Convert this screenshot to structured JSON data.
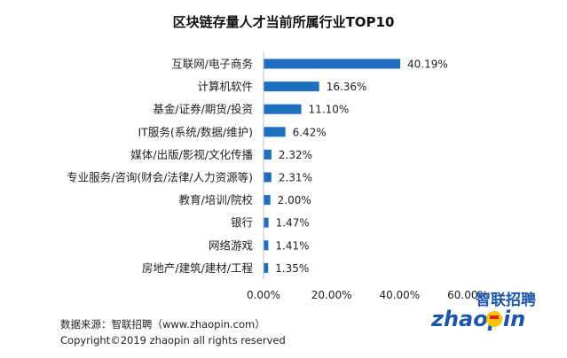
{
  "chart_data": {
    "type": "bar",
    "orientation": "horizontal",
    "title": "区块链存量人才当前所属行业TOP10",
    "categories": [
      "互联网/电子商务",
      "计算机软件",
      "基金/证券/期货/投资",
      "IT服务(系统/数据/维护)",
      "媒体/出版/影视/文化传播",
      "专业服务/咨询(财会/法律/人力资源等)",
      "教育/培训/院校",
      "银行",
      "网络游戏",
      "房地产/建筑/建材/工程"
    ],
    "values": [
      40.19,
      16.36,
      11.1,
      6.42,
      2.32,
      2.31,
      2.0,
      1.47,
      1.41,
      1.35
    ],
    "value_labels": [
      "40.19%",
      "16.36%",
      "11.10%",
      "6.42%",
      "2.32%",
      "2.31%",
      "2.00%",
      "1.47%",
      "1.41%",
      "1.35%"
    ],
    "xlim": [
      0,
      60
    ],
    "x_ticks": [
      0,
      20,
      40,
      60
    ],
    "x_tick_labels": [
      "0.00%",
      "20.00%",
      "40.00%",
      "60.00%"
    ],
    "grid": false,
    "bar_color": "#1f6fc1"
  },
  "footer": {
    "source": "数据来源：智联招聘（www.zhaopin.com）",
    "copyright": "Copyright©2019 zhaopin all rights reserved"
  },
  "logo": {
    "text_cn": "智联招聘",
    "text_en": "zhaopin.com",
    "color_blue": "#1a56b0",
    "color_yellow": "#f7c600",
    "color_red": "#e02020"
  }
}
